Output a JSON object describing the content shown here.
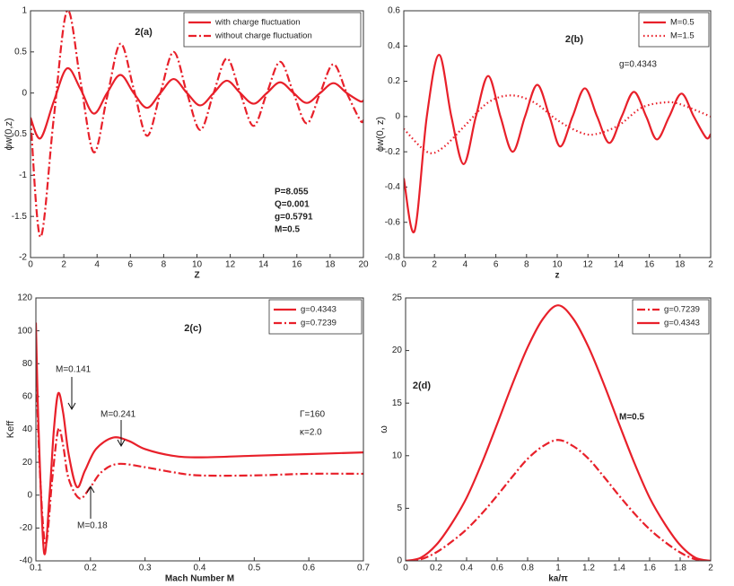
{
  "chart_data": [
    {
      "type": "line",
      "title": "2(a)",
      "x_label": "Z",
      "y_label": "ϕw(0,z)",
      "xlim": [
        0,
        20
      ],
      "xticks": [
        0,
        2,
        4,
        6,
        8,
        10,
        12,
        14,
        16,
        18,
        20
      ],
      "ylim": [
        -2,
        1
      ],
      "yticks": [
        1,
        0.5,
        0,
        -0.5,
        -1,
        -1.5,
        -2
      ],
      "legend": "upper right",
      "annotations": [
        "P=8.055",
        "Q=0.001",
        "g=0.5791",
        "M=0.5"
      ],
      "series": [
        {
          "name": "with charge fluctuation",
          "color": "#e8202a",
          "line_style": "solid",
          "x": [
            0,
            0.6,
            1.4,
            2.2,
            3.0,
            3.8,
            4.6,
            5.4,
            6.2,
            7.0,
            7.8,
            8.6,
            9.4,
            10.2,
            11.0,
            11.8,
            12.6,
            13.4,
            14.2,
            15.0,
            15.8,
            16.6,
            17.4,
            18.2,
            19.0,
            19.8,
            20
          ],
          "values": [
            -0.3,
            -0.55,
            -0.1,
            0.3,
            0.05,
            -0.25,
            0,
            0.22,
            0,
            -0.18,
            0,
            0.17,
            0,
            -0.15,
            0,
            0.15,
            0,
            -0.13,
            0,
            0.13,
            0,
            -0.12,
            0,
            0.12,
            0,
            -0.1,
            -0.09
          ]
        },
        {
          "name": "without charge fluctuation",
          "color": "#e8202a",
          "line_style": "dashdot",
          "x": [
            0,
            0.6,
            1.4,
            2.2,
            3.0,
            3.8,
            4.6,
            5.4,
            6.2,
            7.0,
            7.8,
            8.6,
            9.4,
            10.2,
            11.0,
            11.8,
            12.6,
            13.4,
            14.2,
            15.0,
            15.8,
            16.6,
            17.4,
            18.2,
            19.0,
            19.8,
            20
          ],
          "values": [
            -0.3,
            -1.75,
            -0.3,
            1.0,
            0.15,
            -0.72,
            -0.05,
            0.6,
            0.05,
            -0.52,
            0,
            0.5,
            0,
            -0.45,
            0,
            0.42,
            0,
            -0.4,
            0,
            0.38,
            0,
            -0.37,
            0,
            0.35,
            0,
            -0.33,
            -0.33
          ]
        }
      ]
    },
    {
      "type": "line",
      "title": "2(b)",
      "x_label": "z",
      "y_label": "ϕw(0, z)",
      "xlim": [
        0,
        20
      ],
      "xticks": [
        0,
        2,
        4,
        6,
        8,
        10,
        12,
        14,
        16,
        18,
        {
          "value": 20,
          "label": "2"
        }
      ],
      "ylim": [
        -0.8,
        0.6
      ],
      "yticks": [
        0.6,
        0.4,
        0.2,
        0,
        -0.2,
        -0.4,
        -0.6,
        -0.8
      ],
      "legend": "upper right",
      "annotations": [
        "g=0.4343"
      ],
      "series": [
        {
          "name": "M=0.5",
          "color": "#e8202a",
          "line_style": "solid",
          "x": [
            0,
            0.7,
            1.5,
            2.3,
            3.1,
            3.9,
            4.7,
            5.5,
            6.3,
            7.1,
            7.9,
            8.7,
            9.5,
            10.2,
            11.0,
            11.8,
            12.6,
            13.4,
            14.2,
            15.0,
            15.8,
            16.5,
            17.3,
            18.1,
            18.9,
            19.7,
            20
          ],
          "values": [
            -0.35,
            -0.65,
            0,
            0.35,
            0,
            -0.27,
            0,
            0.23,
            0,
            -0.2,
            0,
            0.18,
            0,
            -0.17,
            0,
            0.16,
            0,
            -0.15,
            0,
            0.14,
            0,
            -0.13,
            0,
            0.13,
            0,
            -0.12,
            -0.1
          ]
        },
        {
          "name": "M=1.5",
          "color": "#e8202a",
          "line_style": "dotted",
          "x": [
            0,
            1.5,
            2.5,
            4,
            5.5,
            7,
            8.5,
            10,
            11.5,
            12.5,
            14,
            15.5,
            17,
            18,
            20
          ],
          "values": [
            -0.07,
            -0.2,
            -0.18,
            -0.05,
            0.08,
            0.12,
            0.08,
            -0.02,
            -0.09,
            -0.1,
            -0.05,
            0.05,
            0.08,
            0.07,
            0
          ]
        }
      ]
    },
    {
      "type": "line",
      "title": "2(c)",
      "x_label": "Mach Number M",
      "y_label": "Keff",
      "xlim": [
        0.1,
        0.7
      ],
      "xticks": [
        0.1,
        0.2,
        0.3,
        0.4,
        0.5,
        0.6,
        0.7
      ],
      "ylim": [
        -40,
        120
      ],
      "yticks": [
        120,
        100,
        80,
        60,
        40,
        20,
        0,
        -20,
        -40
      ],
      "legend": "upper right",
      "annotations": [
        "M=0.141",
        "M=0.241",
        "M=0.18",
        "Γ=160",
        "κ=2.0"
      ],
      "series": [
        {
          "name": "g=0.4343",
          "color": "#e8202a",
          "line_style": "solid",
          "x": [
            0.1,
            0.105,
            0.115,
            0.125,
            0.133,
            0.141,
            0.15,
            0.16,
            0.175,
            0.19,
            0.21,
            0.241,
            0.27,
            0.3,
            0.35,
            0.4,
            0.5,
            0.6,
            0.7
          ],
          "values": [
            105,
            40,
            -35,
            0,
            40,
            62,
            50,
            25,
            5,
            15,
            28,
            35,
            33,
            28,
            24,
            23,
            24,
            25,
            26
          ]
        },
        {
          "name": "g=0.7239",
          "color": "#e8202a",
          "line_style": "dashdot",
          "x": [
            0.1,
            0.108,
            0.118,
            0.13,
            0.141,
            0.15,
            0.16,
            0.18,
            0.2,
            0.22,
            0.25,
            0.3,
            0.35,
            0.4,
            0.5,
            0.6,
            0.7
          ],
          "values": [
            80,
            10,
            -30,
            10,
            40,
            30,
            10,
            -2,
            5,
            14,
            19,
            17,
            14,
            12,
            12,
            13,
            13
          ]
        }
      ]
    },
    {
      "type": "line",
      "title": "2(d)",
      "x_label": "ka/π",
      "y_label": "ω",
      "xlim": [
        0,
        2
      ],
      "xticks": [
        0,
        0.2,
        0.4,
        0.6,
        0.8,
        1,
        1.2,
        1.4,
        1.6,
        1.8,
        2
      ],
      "ylim": [
        0,
        25
      ],
      "yticks": [
        25,
        20,
        15,
        10,
        5,
        0
      ],
      "legend": "upper right",
      "annotations": [
        "M=0.5"
      ],
      "series": [
        {
          "name": "g=0.7239",
          "color": "#e8202a",
          "line_style": "dashdot",
          "x": [
            0,
            0.1,
            0.2,
            0.3,
            0.4,
            0.5,
            0.6,
            0.7,
            0.8,
            0.9,
            1,
            1.1,
            1.2,
            1.3,
            1.4,
            1.5,
            1.6,
            1.7,
            1.8,
            1.9,
            2
          ],
          "values": [
            0,
            0.15,
            0.8,
            1.8,
            3,
            4.5,
            6.2,
            8,
            9.7,
            10.9,
            11.5,
            10.9,
            9.7,
            8,
            6.2,
            4.5,
            3,
            1.8,
            0.8,
            0.15,
            0
          ]
        },
        {
          "name": "g=0.4343",
          "color": "#e8202a",
          "line_style": "solid",
          "x": [
            0,
            0.1,
            0.2,
            0.3,
            0.4,
            0.5,
            0.6,
            0.7,
            0.8,
            0.9,
            1,
            1.1,
            1.2,
            1.3,
            1.4,
            1.5,
            1.6,
            1.7,
            1.8,
            1.9,
            2
          ],
          "values": [
            0,
            0.3,
            1.5,
            3.5,
            6,
            9.3,
            13,
            16.8,
            20.3,
            23,
            24.3,
            23,
            20.3,
            16.8,
            13,
            9.3,
            6,
            3.5,
            1.5,
            0.3,
            0
          ]
        }
      ]
    }
  ]
}
